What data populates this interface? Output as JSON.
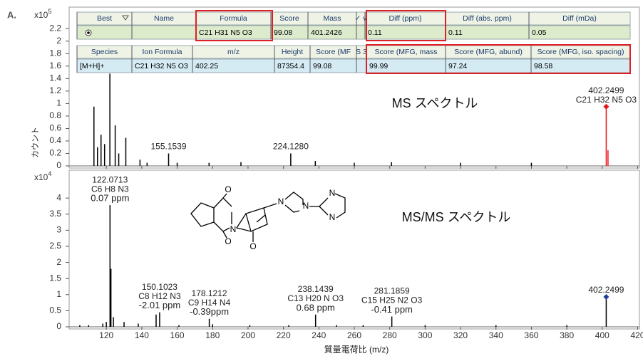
{
  "panel_label": "A.",
  "tables": [
    {
      "columns": [
        "Best",
        "Name",
        "Formula",
        "Score",
        "Mass",
        "✓ v",
        "Diff (ppm)",
        "Diff (abs. ppm)",
        "Diff (mDa)"
      ],
      "rows": [
        [
          null,
          null,
          "C21 H31 N5 O3",
          99.08,
          401.2426,
          null,
          0.11,
          0.11,
          0.05
        ]
      ]
    },
    {
      "columns": [
        "Species",
        "Ion Formula",
        "m/z",
        "Height",
        "Score (MF",
        "S 3",
        "Score (MFG, mass",
        "Score (MFG, abund)",
        "Score (MFG, iso. spacing)"
      ],
      "rows": [
        [
          "[M+H]+",
          "C21 H32 N5 O3",
          402.25,
          87354.4,
          99.08,
          null,
          99.99,
          97.24,
          98.58
        ]
      ]
    }
  ],
  "structure": {
    "atom_labels": [
      "O",
      "N",
      "O",
      "O",
      "N",
      "N",
      "N",
      "N"
    ]
  },
  "chart_data": [
    {
      "type": "stem",
      "y_label": "カウント",
      "y_scale_label": "x10",
      "y_scale_exponent": 5,
      "annotation": "MS スペクトル",
      "xlim": [
        99,
        421
      ],
      "xticks": [
        120,
        140,
        160,
        180,
        200,
        220,
        240,
        260,
        280,
        300,
        320,
        340,
        360,
        380,
        400,
        420
      ],
      "ylim": [
        0,
        2.5
      ],
      "yticks": [
        0,
        0.2,
        0.4,
        0.6,
        0.8,
        1,
        1.2,
        1.4,
        1.6,
        1.8,
        2,
        2.2
      ],
      "series": [
        {
          "color": "#000000",
          "x": [
            113,
            115,
            117,
            119,
            122,
            125,
            127,
            131,
            139,
            143,
            155.15,
            160,
            178,
            196,
            224.13,
            238,
            260,
            281,
            320,
            360
          ],
          "values": [
            0.95,
            0.3,
            0.5,
            0.35,
            1.48,
            0.65,
            0.2,
            0.45,
            0.1,
            0.05,
            0.2,
            0.05,
            0.05,
            0.06,
            0.2,
            0.08,
            0.05,
            0.06,
            0.05,
            0.05
          ]
        },
        {
          "color": "#e8141b",
          "marker_color": "#e8141b",
          "x": [
            402.25,
            403.25
          ],
          "values": [
            0.95,
            0.25
          ]
        }
      ],
      "peak_labels": [
        {
          "x": 155.15,
          "lines": [
            "155.1539"
          ]
        },
        {
          "x": 224.13,
          "lines": [
            "224.1280"
          ]
        },
        {
          "x": 402.25,
          "lines": [
            "402.2499",
            "C21 H32 N5 O3"
          ]
        }
      ]
    },
    {
      "type": "stem",
      "x_label": "質量電荷比 (m/z)",
      "y_scale_label": "x10",
      "y_scale_exponent": 4,
      "annotation": "MS/MS スペクトル",
      "xlim": [
        99,
        421
      ],
      "xticks": [
        120,
        140,
        160,
        180,
        200,
        220,
        240,
        260,
        280,
        300,
        320,
        340,
        360,
        380,
        400,
        420
      ],
      "ylim": [
        0,
        4.8
      ],
      "yticks": [
        0,
        0.5,
        1,
        1.5,
        2,
        2.5,
        3,
        3.5,
        4
      ],
      "series": [
        {
          "color": "#000000",
          "x": [
            105,
            110,
            118,
            120,
            122.07,
            122.6,
            124,
            130,
            138,
            148.1,
            150.1,
            161,
            178.12,
            180,
            201,
            223,
            238.14,
            250,
            265,
            281.19,
            300,
            340,
            380
          ],
          "values": [
            0.05,
            0.05,
            0.1,
            0.15,
            3.78,
            1.8,
            0.3,
            0.15,
            0.1,
            0.38,
            0.45,
            0.05,
            0.25,
            0.08,
            0.05,
            0.05,
            0.38,
            0.05,
            0.05,
            0.32,
            0.05,
            0.05,
            0.05
          ]
        },
        {
          "color": "#000000",
          "marker_color": "#1f3f99",
          "x": [
            402.25
          ],
          "values": [
            0.93
          ]
        }
      ],
      "peak_labels": [
        {
          "x": 122.07,
          "lines": [
            "122.0713",
            "C6 H8 N3",
            "0.07 ppm"
          ]
        },
        {
          "x": 150.1,
          "lines": [
            "150.1023",
            "C8 H12 N3",
            "-2.01 ppm"
          ]
        },
        {
          "x": 178.12,
          "lines": [
            "178.1212",
            "C9 H14 N4",
            "-0.39ppm"
          ]
        },
        {
          "x": 238.14,
          "lines": [
            "238.1439",
            "C13 H20 N O3",
            "0.68 ppm"
          ]
        },
        {
          "x": 281.19,
          "lines": [
            "281.1859",
            "C15 H25 N2 O3",
            "-0.41 ppm"
          ]
        },
        {
          "x": 402.25,
          "lines": [
            "402.2499"
          ]
        }
      ]
    }
  ]
}
